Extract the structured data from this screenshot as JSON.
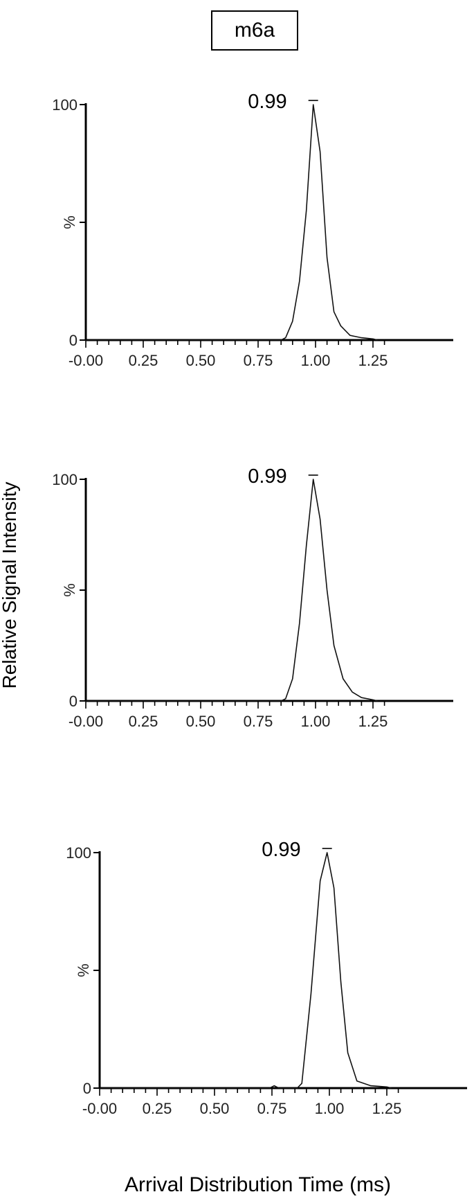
{
  "figure": {
    "title": "m6a",
    "ylabel": "Relative Signal Intensity",
    "xlabel": "Arrival Distribution Time (ms)"
  },
  "chart_data": [
    {
      "type": "line",
      "ytick_labels": [
        "100",
        "%",
        "0"
      ],
      "xtick_labels": [
        "-0.00",
        "0.25",
        "0.50",
        "0.75",
        "1.00",
        "1.25"
      ],
      "xticks": [
        0,
        0.25,
        0.5,
        0.75,
        1.0,
        1.25
      ],
      "xlim": [
        0,
        1.3
      ],
      "ylim": [
        0,
        100
      ],
      "peak_label": "0.99",
      "peak_x": 0.99,
      "series": [
        {
          "x": [
            0,
            0.3,
            0.6,
            0.85,
            0.87,
            0.9,
            0.93,
            0.96,
            0.99,
            1.02,
            1.05,
            1.08,
            1.11,
            1.15,
            1.2,
            1.25,
            1.27
          ],
          "y": [
            0,
            0,
            0,
            0,
            1,
            8,
            25,
            55,
            100,
            80,
            35,
            12,
            6,
            2,
            1,
            0.5,
            0
          ]
        }
      ]
    },
    {
      "type": "line",
      "ytick_labels": [
        "100",
        "%",
        "0"
      ],
      "xtick_labels": [
        "-0.00",
        "0.25",
        "0.50",
        "0.75",
        "1.00",
        "1.25"
      ],
      "xticks": [
        0,
        0.25,
        0.5,
        0.75,
        1.0,
        1.25
      ],
      "xlim": [
        0,
        1.3
      ],
      "ylim": [
        0,
        100
      ],
      "peak_label": "0.99",
      "peak_x": 0.99,
      "series": [
        {
          "x": [
            0,
            0.3,
            0.6,
            0.85,
            0.87,
            0.9,
            0.93,
            0.96,
            0.99,
            1.02,
            1.05,
            1.08,
            1.12,
            1.16,
            1.2,
            1.25,
            1.27
          ],
          "y": [
            0,
            0,
            0,
            0,
            1,
            10,
            35,
            70,
            100,
            82,
            50,
            25,
            10,
            4,
            1.5,
            0.5,
            0
          ]
        }
      ]
    },
    {
      "type": "line",
      "ytick_labels": [
        "100",
        "%",
        "0"
      ],
      "xtick_labels": [
        "-0.00",
        "0.25",
        "0.50",
        "0.75",
        "1.00",
        "1.25"
      ],
      "xticks": [
        0,
        0.25,
        0.5,
        0.75,
        1.0,
        1.25
      ],
      "xlim": [
        0,
        1.3
      ],
      "ylim": [
        0,
        100
      ],
      "peak_label": "0.99",
      "peak_x": 0.99,
      "series": [
        {
          "x": [
            0,
            0.3,
            0.6,
            0.74,
            0.76,
            0.78,
            0.86,
            0.88,
            0.92,
            0.96,
            0.99,
            1.02,
            1.05,
            1.08,
            1.12,
            1.18,
            1.25,
            1.27
          ],
          "y": [
            0,
            0,
            0,
            0,
            1,
            0,
            0,
            2,
            40,
            88,
            100,
            85,
            45,
            15,
            3,
            1,
            0.5,
            0
          ]
        }
      ]
    }
  ]
}
